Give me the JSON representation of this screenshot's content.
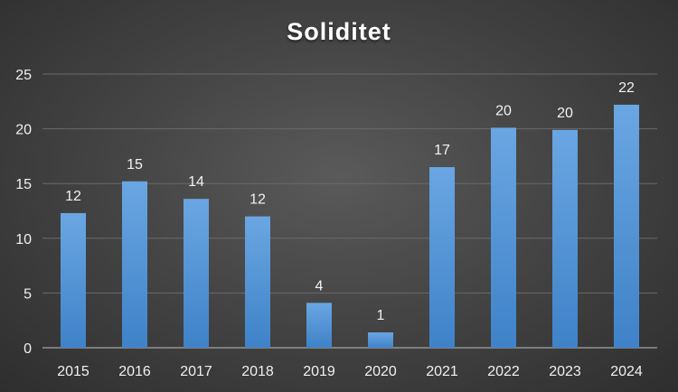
{
  "chart_data": {
    "type": "bar",
    "title": "Soliditet",
    "categories": [
      "2015",
      "2016",
      "2017",
      "2018",
      "2019",
      "2020",
      "2021",
      "2022",
      "2023",
      "2024"
    ],
    "values": [
      12.3,
      15.2,
      13.6,
      12.0,
      4.1,
      1.4,
      16.5,
      20.1,
      19.9,
      22.2
    ],
    "value_labels": [
      "12",
      "15",
      "14",
      "12",
      "4",
      "1",
      "17",
      "20",
      "20",
      "22"
    ],
    "yticks": [
      "0",
      "5",
      "10",
      "15",
      "20",
      "25"
    ],
    "ylim": [
      0,
      25
    ],
    "grid": true,
    "legend": "none",
    "colors": {
      "bar_top": "#6aa6e2",
      "bar_bottom": "#3f82c8",
      "grid": "#6a6a6a",
      "axis": "#bfbfbf"
    }
  }
}
